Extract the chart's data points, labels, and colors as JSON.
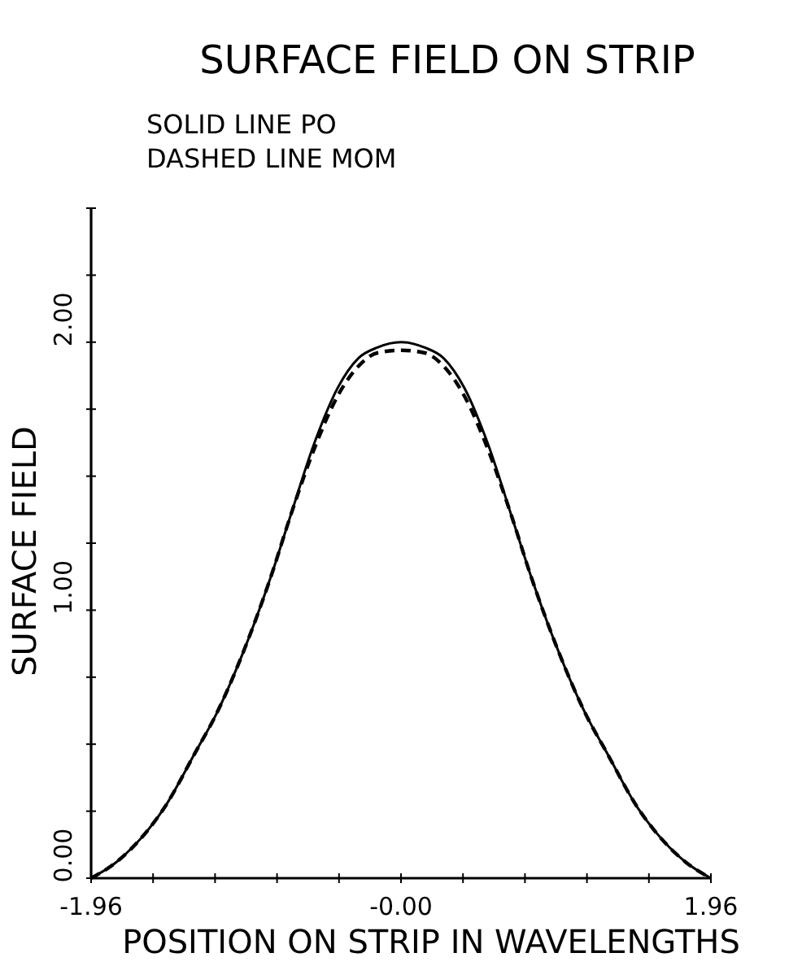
{
  "chart_data": {
    "type": "line",
    "title": "SURFACE FIELD ON STRIP",
    "subtitle": "SOLID LINE PO\nDASHED LINE MOM",
    "xlabel": "POSITION ON STRIP IN WAVELENGTHS",
    "ylabel": "SURFACE FIELD",
    "xlim": [
      -1.96,
      1.96
    ],
    "ylim": [
      0,
      2.5
    ],
    "xticks": [
      {
        "value": -1.96,
        "label": "-1.96"
      },
      {
        "value": -1.568,
        "label": null
      },
      {
        "value": -1.176,
        "label": null
      },
      {
        "value": -0.784,
        "label": null
      },
      {
        "value": -0.392,
        "label": null
      },
      {
        "value": 0,
        "label": "-0.00"
      },
      {
        "value": 0.392,
        "label": null
      },
      {
        "value": 0.784,
        "label": null
      },
      {
        "value": 1.176,
        "label": null
      },
      {
        "value": 1.568,
        "label": null
      },
      {
        "value": 1.96,
        "label": "1.96"
      }
    ],
    "yticks": [
      {
        "value": 0,
        "label": "0.00"
      },
      {
        "value": 0.25,
        "label": null
      },
      {
        "value": 0.5,
        "label": null
      },
      {
        "value": 0.75,
        "label": null
      },
      {
        "value": 1,
        "label": "1.00"
      },
      {
        "value": 1.25,
        "label": null
      },
      {
        "value": 1.5,
        "label": null
      },
      {
        "value": 1.75,
        "label": null
      },
      {
        "value": 2,
        "label": "2.00"
      },
      {
        "value": 2.25,
        "label": null
      },
      {
        "value": 2.5,
        "label": null
      }
    ],
    "grid": false,
    "marker": "none",
    "series": [
      {
        "color": "#000000",
        "line_style": "solid",
        "x": [
          -1.96,
          -1.8,
          -1.6,
          -1.5,
          -1.3,
          -1.17,
          -1.0,
          -0.82,
          -0.7,
          -0.55,
          -0.4,
          -0.27,
          -0.15,
          0,
          0.15,
          0.27,
          0.4,
          0.55,
          0.7,
          0.82,
          1.0,
          1.17,
          1.3,
          1.5,
          1.6,
          1.8,
          1.96
        ],
        "values": [
          0,
          0.06,
          0.18,
          0.26,
          0.47,
          0.61,
          0.84,
          1.13,
          1.35,
          1.62,
          1.83,
          1.94,
          1.98,
          2.0,
          1.98,
          1.94,
          1.83,
          1.62,
          1.35,
          1.13,
          0.84,
          0.61,
          0.47,
          0.26,
          0.18,
          0.06,
          0
        ]
      },
      {
        "color": "#000000",
        "line_style": "dashed",
        "x": [
          -1.96,
          -1.8,
          -1.6,
          -1.5,
          -1.3,
          -1.17,
          -1.0,
          -0.82,
          -0.7,
          -0.55,
          -0.4,
          -0.27,
          -0.15,
          0,
          0.15,
          0.27,
          0.4,
          0.55,
          0.7,
          0.82,
          1.0,
          1.17,
          1.3,
          1.5,
          1.6,
          1.8,
          1.96
        ],
        "values": [
          0,
          0.06,
          0.18,
          0.26,
          0.47,
          0.61,
          0.84,
          1.13,
          1.35,
          1.6,
          1.8,
          1.91,
          1.96,
          1.97,
          1.96,
          1.91,
          1.8,
          1.6,
          1.35,
          1.13,
          0.84,
          0.61,
          0.47,
          0.26,
          0.18,
          0.06,
          0
        ]
      }
    ]
  }
}
